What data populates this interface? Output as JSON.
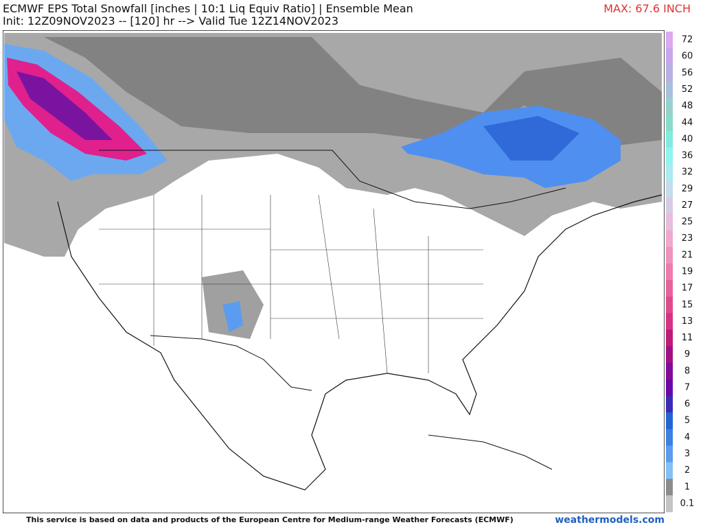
{
  "header": {
    "title": "ECMWF EPS Total Snowfall [inches | 10:1 Liq Equiv Ratio] | Ensemble Mean",
    "subtitle": "Init: 12Z09NOV2023 -- [120] hr --> Valid Tue 12Z14NOV2023",
    "max_label": "MAX: 67.6 INCH"
  },
  "legend": {
    "items": [
      {
        "label": "72",
        "color": "#dca8f2"
      },
      {
        "label": "60",
        "color": "#c8a6ec"
      },
      {
        "label": "56",
        "color": "#b8b0e4"
      },
      {
        "label": "52",
        "color": "#a8c0dc"
      },
      {
        "label": "48",
        "color": "#98d0d0"
      },
      {
        "label": "44",
        "color": "#88dcc8"
      },
      {
        "label": "40",
        "color": "#80ecdf"
      },
      {
        "label": "36",
        "color": "#90f4f0"
      },
      {
        "label": "32",
        "color": "#a8ecf2"
      },
      {
        "label": "29",
        "color": "#c4dcec"
      },
      {
        "label": "27",
        "color": "#d8cce4"
      },
      {
        "label": "25",
        "color": "#e8bcdc"
      },
      {
        "label": "23",
        "color": "#f0a8cc"
      },
      {
        "label": "21",
        "color": "#f092bc"
      },
      {
        "label": "19",
        "color": "#f07aac"
      },
      {
        "label": "17",
        "color": "#e8629c"
      },
      {
        "label": "15",
        "color": "#e04a8c"
      },
      {
        "label": "13",
        "color": "#d83282"
      },
      {
        "label": "11",
        "color": "#c01a7a"
      },
      {
        "label": "9",
        "color": "#a01084"
      },
      {
        "label": "8",
        "color": "#820a98"
      },
      {
        "label": "7",
        "color": "#6a08a8"
      },
      {
        "label": "6",
        "color": "#3a2cb8"
      },
      {
        "label": "5",
        "color": "#2464d4"
      },
      {
        "label": "4",
        "color": "#3c80e4"
      },
      {
        "label": "3",
        "color": "#5c9cf0"
      },
      {
        "label": "2",
        "color": "#84c0f8"
      },
      {
        "label": "1",
        "color": "#8c8c8c"
      },
      {
        "label": "0.1",
        "color": "#c4c4c4"
      }
    ]
  },
  "footer": {
    "disclaimer": "This service is based on data and products of the European Centre for Medium-range Weather Forecasts (ECMWF)",
    "site": "weathermodels.com"
  }
}
